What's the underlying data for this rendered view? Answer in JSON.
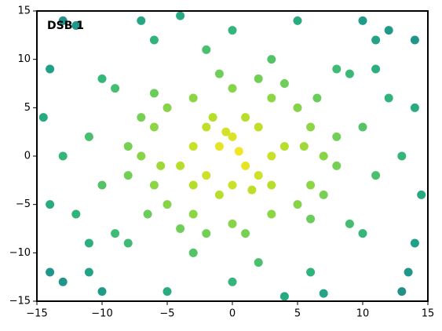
{
  "chart_data": {
    "type": "scatter",
    "annotation": "DSB 1",
    "annotation_color": "#ff0000",
    "colormap": [
      "#fde725",
      "#b5de2b",
      "#6ece58",
      "#35b779",
      "#1f9e89",
      "#26828e"
    ],
    "x": [
      0,
      1,
      -1,
      2,
      -2,
      3,
      -3,
      0,
      1,
      -1,
      2,
      -2,
      4,
      -4,
      0.5,
      -0.5,
      3,
      -3,
      1.5,
      -1.5,
      5,
      -5,
      5,
      -5,
      7,
      -7,
      0,
      0,
      6,
      -6,
      6,
      -6,
      3,
      -3,
      3,
      -3,
      8,
      -8,
      2,
      -2,
      7,
      -7,
      4,
      -4,
      8,
      -8,
      1,
      -1,
      5.5,
      -5.5,
      6.5,
      -6.5,
      6,
      -6,
      10,
      -10,
      3,
      -3,
      9,
      -9,
      11,
      -11,
      -2,
      2,
      8,
      -8,
      -9,
      9,
      12,
      -12,
      6,
      -6,
      10,
      -10,
      13,
      -13,
      0,
      0,
      11,
      -11,
      14,
      -14,
      -13,
      13,
      14,
      -14,
      5,
      -5,
      12,
      -12,
      -13,
      13.5,
      14.5,
      -14.5,
      4,
      -4,
      10,
      -10,
      14,
      -14,
      -7,
      7,
      11,
      -11
    ],
    "y": [
      2,
      -1,
      1,
      3,
      -2,
      0,
      1,
      -3,
      4,
      -4,
      -2,
      3,
      1,
      -1,
      0.5,
      2.5,
      -3,
      -3,
      -3.5,
      4,
      5,
      5,
      -5,
      -5,
      0,
      0,
      7,
      -7,
      3,
      3,
      -3,
      -3,
      6,
      6,
      -6,
      -6,
      2,
      -2,
      8,
      -8,
      -4,
      4,
      7.5,
      -7.5,
      -1,
      1,
      -8,
      8.5,
      1,
      -1,
      6,
      -6,
      -6.5,
      6.5,
      3,
      -3,
      10,
      -10,
      -7,
      7,
      -2,
      2,
      11,
      -11,
      9,
      -9,
      -8,
      8.5,
      6,
      -6,
      -12,
      12,
      -8,
      8,
      0,
      0,
      13,
      -13,
      9,
      -9,
      12,
      -12,
      14,
      -14,
      5,
      -5,
      14,
      -14,
      13,
      13.5,
      -13,
      -12,
      -4,
      4,
      -14.5,
      14.5,
      14,
      -14,
      -9,
      9,
      14,
      -14.2,
      12,
      -12
    ],
    "xlim": [
      -15,
      15
    ],
    "ylim": [
      -15,
      15
    ],
    "xticks": [
      {
        "value": -15,
        "label": "−15"
      },
      {
        "value": -10,
        "label": "−10"
      },
      {
        "value": -5,
        "label": "−5"
      },
      0,
      5,
      10,
      15
    ],
    "yticks": [
      {
        "value": -15,
        "label": "−15"
      },
      {
        "value": -10,
        "label": "−10"
      },
      {
        "value": -5,
        "label": "−5"
      },
      0,
      5,
      10,
      15
    ]
  }
}
